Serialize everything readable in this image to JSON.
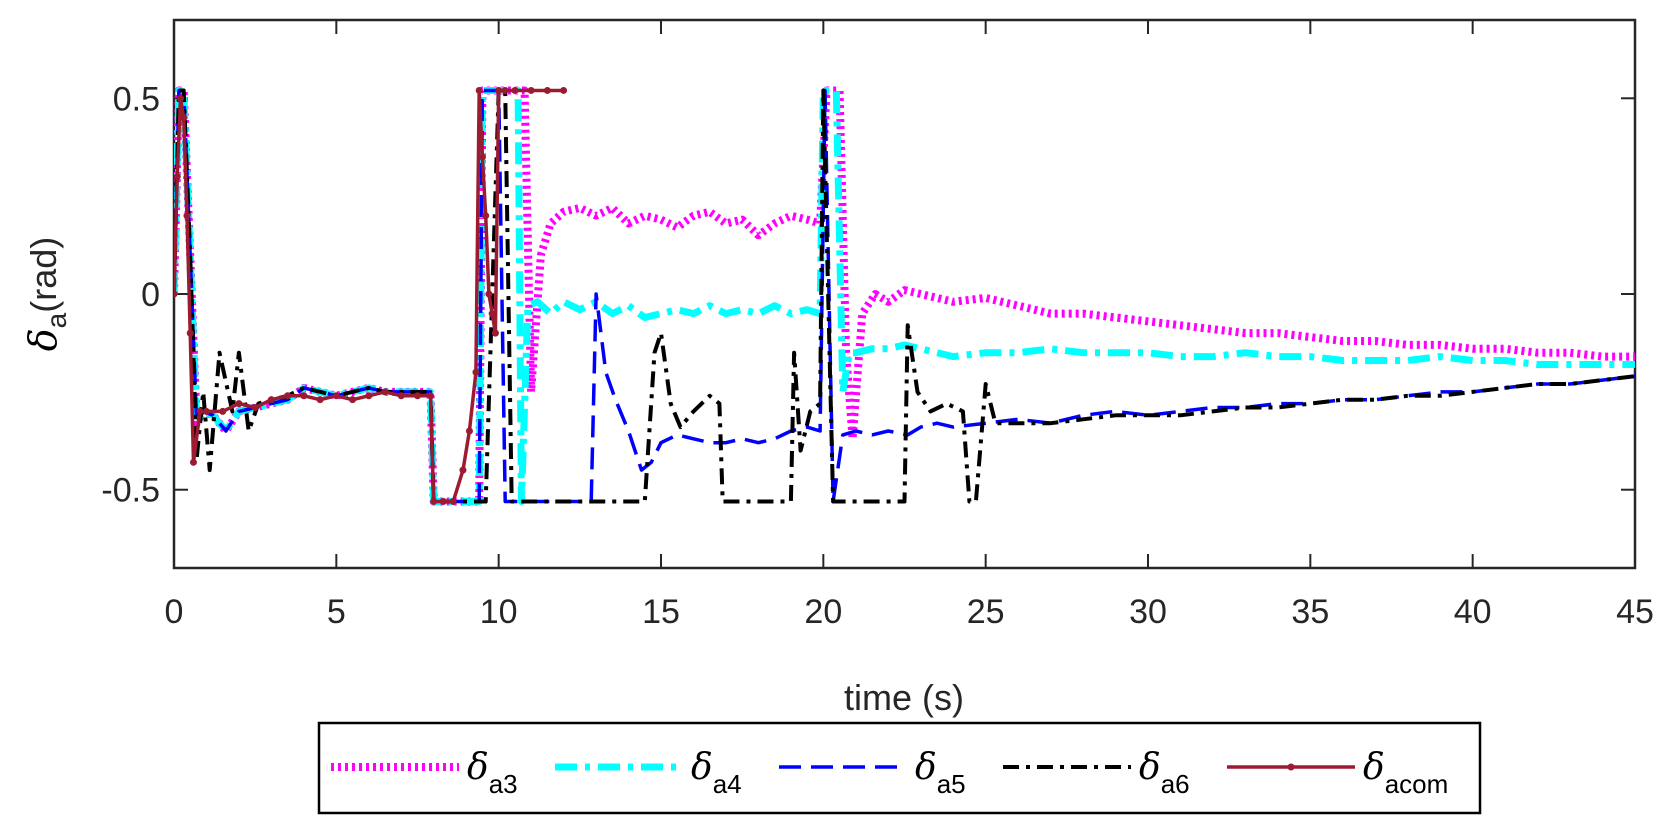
{
  "chart_data": {
    "type": "line",
    "title": "",
    "xlabel": "time (s)",
    "ylabel": {
      "symbol": "δ",
      "sub": "a",
      "rest": "(rad)"
    },
    "xlim": [
      0,
      45
    ],
    "ylim": [
      -0.7,
      0.7
    ],
    "xticks": [
      0,
      5,
      10,
      15,
      20,
      25,
      30,
      35,
      40,
      45
    ],
    "yticks": [
      0.5,
      0,
      -0.5
    ],
    "xtick_labels": [
      "0",
      "5",
      "10",
      "15",
      "20",
      "25",
      "30",
      "35",
      "40",
      "45"
    ],
    "ytick_labels": [
      "0.5",
      "0",
      "-0.5"
    ],
    "grid": false,
    "legend_position": "bottom-outside",
    "series": [
      {
        "name": "δa3",
        "symbol": "δ",
        "sub": "a3",
        "color": "#ff00ff",
        "style": "dotted",
        "x": [
          0,
          0.15,
          0.3,
          0.5,
          0.7,
          0.9,
          1.2,
          1.6,
          2,
          2.5,
          3,
          3.5,
          4,
          5,
          6,
          6.5,
          7,
          7.5,
          7.9,
          8.0,
          8.5,
          9.0,
          9.4,
          9.5,
          9.9,
          10.2,
          10.5,
          10.8,
          11.0,
          11.3,
          11.6,
          12,
          12.5,
          13,
          13.5,
          14,
          14.5,
          15,
          15.5,
          16,
          16.5,
          17,
          17.5,
          18,
          18.5,
          19,
          19.5,
          19.9,
          20.1,
          20.5,
          20.7,
          20.9,
          21.2,
          21.6,
          22,
          22.5,
          23,
          24,
          25,
          26,
          27,
          28,
          29,
          30,
          31,
          32,
          33,
          34,
          35,
          36,
          37,
          38,
          39,
          40,
          41,
          42,
          43,
          44,
          45
        ],
        "y": [
          0.0,
          0.52,
          0.52,
          0.1,
          -0.33,
          -0.3,
          -0.31,
          -0.35,
          -0.3,
          -0.29,
          -0.28,
          -0.27,
          -0.24,
          -0.26,
          -0.24,
          -0.25,
          -0.25,
          -0.25,
          -0.25,
          -0.53,
          -0.53,
          -0.53,
          -0.53,
          0.52,
          0.52,
          0.52,
          0.52,
          0.52,
          -0.25,
          0.1,
          0.18,
          0.21,
          0.22,
          0.2,
          0.22,
          0.18,
          0.2,
          0.19,
          0.17,
          0.2,
          0.21,
          0.18,
          0.19,
          0.15,
          0.18,
          0.2,
          0.19,
          0.18,
          0.52,
          0.52,
          -0.15,
          -0.37,
          -0.05,
          0.0,
          -0.02,
          0.01,
          0.0,
          -0.02,
          -0.01,
          -0.03,
          -0.05,
          -0.05,
          -0.06,
          -0.07,
          -0.08,
          -0.09,
          -0.1,
          -0.1,
          -0.11,
          -0.12,
          -0.12,
          -0.13,
          -0.13,
          -0.14,
          -0.14,
          -0.15,
          -0.15,
          -0.16,
          -0.16
        ]
      },
      {
        "name": "δa4",
        "symbol": "δ",
        "sub": "a4",
        "color": "#00ffff",
        "style": "dashdot-thick",
        "x": [
          0,
          0.15,
          0.3,
          0.5,
          0.7,
          0.9,
          1.2,
          1.6,
          2,
          2.5,
          3,
          3.5,
          4,
          5,
          6,
          6.5,
          7,
          7.5,
          7.9,
          8.0,
          8.5,
          9.0,
          9.4,
          9.5,
          9.9,
          10.3,
          10.6,
          10.7,
          10.9,
          11.2,
          11.6,
          12,
          12.5,
          13,
          13.5,
          14,
          14.5,
          15,
          15.5,
          16,
          16.5,
          17,
          17.5,
          18,
          18.5,
          19,
          19.5,
          19.9,
          20.0,
          20.4,
          20.6,
          20.8,
          21.0,
          21.5,
          22,
          22.5,
          23,
          24,
          25,
          26,
          27,
          28,
          29,
          30,
          31,
          32,
          33,
          34,
          35,
          36,
          37,
          38,
          39,
          40,
          41,
          42,
          43,
          44,
          45
        ],
        "y": [
          0.0,
          0.52,
          0.52,
          0.1,
          -0.33,
          -0.3,
          -0.31,
          -0.35,
          -0.3,
          -0.29,
          -0.28,
          -0.27,
          -0.24,
          -0.26,
          -0.24,
          -0.25,
          -0.25,
          -0.25,
          -0.25,
          -0.53,
          -0.53,
          -0.53,
          -0.53,
          0.52,
          0.52,
          0.52,
          0.52,
          -0.53,
          -0.03,
          -0.02,
          -0.05,
          -0.02,
          -0.04,
          -0.02,
          -0.05,
          -0.03,
          -0.06,
          -0.05,
          -0.04,
          -0.05,
          -0.03,
          -0.05,
          -0.04,
          -0.05,
          -0.03,
          -0.05,
          -0.04,
          -0.05,
          0.52,
          0.52,
          -0.25,
          -0.15,
          -0.15,
          -0.14,
          -0.14,
          -0.13,
          -0.14,
          -0.16,
          -0.15,
          -0.15,
          -0.14,
          -0.15,
          -0.15,
          -0.15,
          -0.16,
          -0.16,
          -0.15,
          -0.16,
          -0.16,
          -0.17,
          -0.17,
          -0.17,
          -0.16,
          -0.17,
          -0.17,
          -0.18,
          -0.18,
          -0.18,
          -0.18
        ]
      },
      {
        "name": "δa5",
        "symbol": "δ",
        "sub": "a5",
        "color": "#0000ff",
        "style": "dashed",
        "x": [
          0,
          0.15,
          0.3,
          0.5,
          0.7,
          0.9,
          1.2,
          1.6,
          2,
          2.5,
          3,
          3.5,
          4,
          5,
          6,
          6.5,
          7,
          7.5,
          7.9,
          8.0,
          8.5,
          9.0,
          9.4,
          9.5,
          9.8,
          10.0,
          10.2,
          10.6,
          11.5,
          12.5,
          12.85,
          13.0,
          13.3,
          13.6,
          14.0,
          14.4,
          14.7,
          15,
          15.5,
          16,
          16.5,
          17,
          17.5,
          18,
          18.5,
          19,
          19.5,
          19.9,
          20.05,
          20.3,
          20.6,
          21.0,
          21.5,
          22.0,
          22.6,
          23.0,
          23.5,
          24,
          25,
          26,
          27,
          28,
          29,
          30,
          31,
          32,
          33,
          34,
          35,
          36,
          37,
          38,
          39,
          40,
          41,
          42,
          43,
          44,
          45
        ],
        "y": [
          0.0,
          0.52,
          0.52,
          0.1,
          -0.33,
          -0.3,
          -0.31,
          -0.35,
          -0.3,
          -0.29,
          -0.28,
          -0.27,
          -0.24,
          -0.26,
          -0.24,
          -0.25,
          -0.25,
          -0.25,
          -0.25,
          -0.53,
          -0.53,
          -0.53,
          -0.53,
          0.52,
          0.52,
          0.52,
          -0.53,
          -0.53,
          -0.53,
          -0.53,
          -0.53,
          0.0,
          -0.2,
          -0.27,
          -0.35,
          -0.45,
          -0.43,
          -0.38,
          -0.36,
          -0.37,
          -0.38,
          -0.38,
          -0.37,
          -0.38,
          -0.37,
          -0.35,
          -0.34,
          -0.35,
          0.52,
          -0.53,
          -0.36,
          -0.35,
          -0.36,
          -0.35,
          -0.36,
          -0.34,
          -0.33,
          -0.34,
          -0.33,
          -0.32,
          -0.33,
          -0.31,
          -0.3,
          -0.31,
          -0.3,
          -0.29,
          -0.29,
          -0.28,
          -0.28,
          -0.27,
          -0.27,
          -0.26,
          -0.25,
          -0.25,
          -0.24,
          -0.23,
          -0.23,
          -0.22,
          -0.21
        ]
      },
      {
        "name": "δa6",
        "symbol": "δ",
        "sub": "a6",
        "color": "#000000",
        "style": "dashdot",
        "x": [
          0,
          0.15,
          0.3,
          0.5,
          0.7,
          0.9,
          1.1,
          1.4,
          1.8,
          2.0,
          2.3,
          2.6,
          3,
          3.5,
          4,
          5,
          6,
          6.5,
          7,
          7.5,
          7.9,
          8.0,
          8.5,
          9.0,
          9.4,
          9.6,
          10.0,
          10.2,
          10.4,
          11.0,
          12,
          13,
          14.0,
          14.5,
          14.8,
          15.0,
          15.3,
          15.6,
          16.0,
          16.5,
          16.8,
          16.9,
          17.5,
          18.5,
          19.0,
          19.1,
          19.3,
          19.6,
          19.9,
          20.0,
          20.3,
          20.6,
          21.0,
          21.5,
          22.0,
          22.5,
          22.6,
          22.9,
          23.3,
          23.8,
          24.3,
          24.5,
          24.7,
          25.0,
          25.3,
          26,
          27,
          28,
          29,
          30,
          31,
          32,
          33,
          34,
          35,
          36,
          37,
          38,
          39,
          40,
          41,
          42,
          43,
          44,
          45
        ],
        "y": [
          0.0,
          0.52,
          0.52,
          0.1,
          -0.42,
          -0.25,
          -0.45,
          -0.15,
          -0.3,
          -0.15,
          -0.35,
          -0.28,
          -0.27,
          -0.26,
          -0.24,
          -0.26,
          -0.24,
          -0.25,
          -0.25,
          -0.25,
          -0.25,
          -0.53,
          -0.53,
          -0.53,
          -0.53,
          -0.53,
          0.52,
          0.52,
          -0.53,
          -0.53,
          -0.53,
          -0.53,
          -0.53,
          -0.53,
          -0.15,
          -0.1,
          -0.28,
          -0.34,
          -0.3,
          -0.26,
          -0.28,
          -0.53,
          -0.53,
          -0.53,
          -0.53,
          -0.15,
          -0.4,
          -0.3,
          -0.28,
          0.52,
          -0.53,
          -0.53,
          -0.53,
          -0.53,
          -0.53,
          -0.53,
          -0.08,
          -0.25,
          -0.3,
          -0.28,
          -0.3,
          -0.53,
          -0.53,
          -0.23,
          -0.33,
          -0.33,
          -0.33,
          -0.32,
          -0.31,
          -0.31,
          -0.31,
          -0.3,
          -0.29,
          -0.29,
          -0.28,
          -0.27,
          -0.27,
          -0.26,
          -0.26,
          -0.25,
          -0.24,
          -0.23,
          -0.23,
          -0.22,
          -0.21
        ]
      },
      {
        "name": "δacom",
        "symbol": "δ",
        "sub": "acom",
        "color": "#9b1b30",
        "style": "solid-markers",
        "x": [
          0,
          0.1,
          0.2,
          0.3,
          0.4,
          0.5,
          0.6,
          0.8,
          1.0,
          1.5,
          2.0,
          2.5,
          3,
          3.5,
          4,
          4.5,
          5,
          5.5,
          6,
          6.5,
          7,
          7.5,
          7.9,
          8.0,
          8.3,
          8.6,
          8.9,
          9.1,
          9.3,
          9.4,
          9.5,
          9.6,
          9.7,
          9.8,
          9.9,
          10.0,
          10.2,
          10.5,
          11.0,
          11.5,
          12.0
        ],
        "y": [
          0.0,
          0.3,
          0.5,
          0.45,
          0.2,
          -0.1,
          -0.43,
          -0.3,
          -0.3,
          -0.3,
          -0.28,
          -0.29,
          -0.27,
          -0.26,
          -0.26,
          -0.27,
          -0.26,
          -0.27,
          -0.26,
          -0.25,
          -0.26,
          -0.26,
          -0.26,
          -0.53,
          -0.53,
          -0.53,
          -0.45,
          -0.35,
          -0.2,
          0.52,
          0.35,
          0.2,
          0.0,
          -0.05,
          -0.1,
          0.52,
          0.52,
          0.52,
          0.52,
          0.52,
          0.52
        ]
      }
    ]
  }
}
